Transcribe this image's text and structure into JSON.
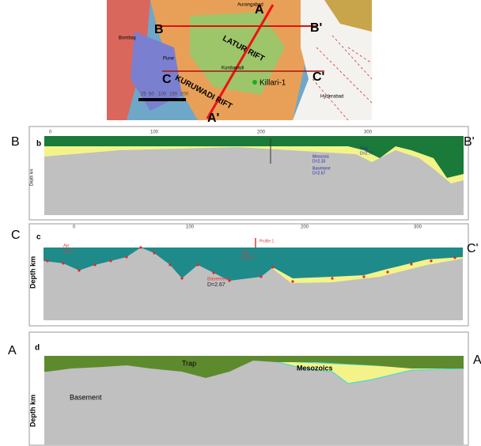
{
  "map": {
    "labels": [
      "A",
      "B",
      "B'",
      "C",
      "C'",
      "A'",
      "LATUR RIFT",
      "KURUWADI RIFT",
      "Killari-1",
      "Pune",
      "Bombay",
      "Kurduwadi",
      "Aurangabad",
      "Hyderabad"
    ],
    "scale": [
      "25",
      "50",
      "100",
      "150",
      "200"
    ]
  },
  "panels": [
    {
      "left": "B",
      "right": "B'",
      "letter": "b",
      "depth": "Depth km",
      "labels": [
        "Mesozoic",
        "D=2.33",
        "Basement",
        "D=2.67",
        "Trap",
        "D=2.77"
      ],
      "ticks": [
        "0",
        "100",
        "200",
        "300"
      ]
    },
    {
      "left": "C",
      "right": "C'",
      "letter": "c",
      "depth": "Depth km",
      "labels": [
        "Air",
        "D=0",
        "Profile 1",
        "Trap",
        "D=2.73",
        "Basement",
        "D=2.67"
      ],
      "ticks": [
        "0",
        "100",
        "200",
        "300"
      ]
    },
    {
      "left": "A",
      "right": "A'",
      "letter": "d",
      "depth": "Depth km",
      "labels": [
        "Trap",
        "Mesozoics",
        "Basement"
      ]
    }
  ]
}
